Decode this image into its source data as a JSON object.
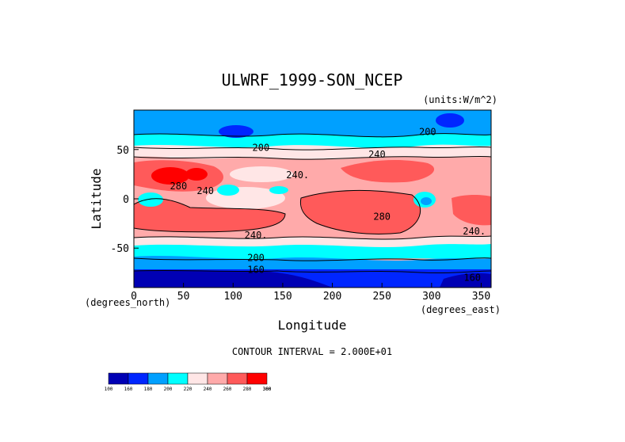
{
  "chart_data": {
    "type": "heatmap",
    "title": "ULWRF_1999-SON_NCEP",
    "units_label": "(units:W/m^2)",
    "xlabel": "Longitude",
    "ylabel": "Latitude",
    "x_unit_label": "(degrees_east)",
    "y_unit_label": "(degrees_north)",
    "xlim": [
      0,
      360
    ],
    "ylim": [
      -90,
      90
    ],
    "x_ticks": [
      0,
      50,
      100,
      150,
      200,
      250,
      300,
      350
    ],
    "y_ticks": [
      -50,
      0,
      50
    ],
    "footer": "CONTOUR INTERVAL = 2.000E+01",
    "colorbar": {
      "levels": [
        "100",
        "160",
        "180",
        "200",
        "220",
        "240",
        "260",
        "280",
        "300",
        "360"
      ],
      "colors": [
        "#0000b4",
        "#0026ff",
        "#00a0ff",
        "#00ffff",
        "#ffe6e6",
        "#ffaaaa",
        "#ff5a5a",
        "#ff0000"
      ]
    },
    "contour_labels": [
      {
        "text": "200",
        "lon": 128,
        "lat": 52
      },
      {
        "text": "200",
        "lon": 296,
        "lat": 68
      },
      {
        "text": "240",
        "lon": 245,
        "lat": 45
      },
      {
        "text": "240.",
        "lon": 165,
        "lat": 24
      },
      {
        "text": "280",
        "lon": 45,
        "lat": 13
      },
      {
        "text": "240",
        "lon": 72,
        "lat": 8
      },
      {
        "text": "280",
        "lon": 250,
        "lat": -18
      },
      {
        "text": "240.",
        "lon": 123,
        "lat": -37
      },
      {
        "text": "240.",
        "lon": 343,
        "lat": -33
      },
      {
        "text": "200",
        "lon": 123,
        "lat": -60
      },
      {
        "text": "160",
        "lon": 123,
        "lat": -72
      },
      {
        "text": "160",
        "lon": 341,
        "lat": -80
      }
    ],
    "grid": false,
    "legend_position": "bottom-left"
  }
}
